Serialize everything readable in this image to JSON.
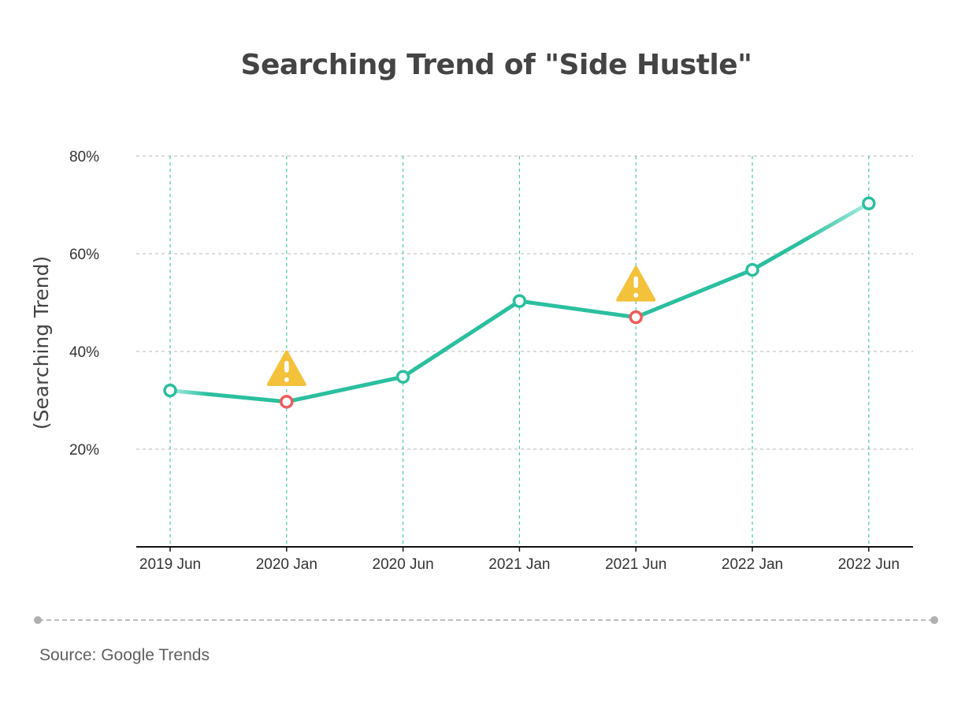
{
  "chart_data": {
    "type": "line",
    "title": "Searching Trend of \"Side Hustle\"",
    "xlabel": "",
    "ylabel": "(Searching Trend)",
    "categories": [
      "2019 Jun",
      "2020 Jan",
      "2020 Jun",
      "2021 Jan",
      "2021 Jun",
      "2022 Jan",
      "2022 Jun"
    ],
    "series": [
      {
        "values": [
          32,
          29.7,
          34.8,
          50.3,
          47,
          56.7,
          70.3
        ],
        "marker_colors": [
          "#2bbf9f",
          "#ee5c5c",
          "#2bbf9f",
          "#2bbf9f",
          "#ee5c5c",
          "#2bbf9f",
          "#2bbf9f"
        ]
      }
    ],
    "yticks": [
      20,
      40,
      60,
      80
    ],
    "ytick_labels": [
      "20%",
      "40%",
      "60%",
      "80%"
    ],
    "ylim": [
      0,
      80
    ],
    "grid": true,
    "warning_points": [
      "2020 Jan",
      "2021 Jun"
    ],
    "annotations": [
      {
        "category": "2020 Jan",
        "icon": "warning-icon"
      },
      {
        "category": "2021 Jun",
        "icon": "warning-icon"
      }
    ],
    "colors": {
      "line": "#2bbf9f",
      "line_faded": "#a8ede0",
      "grid_vertical": "#2bbf9f",
      "grid_horizontal": "#c8c8c8",
      "decline_marker": "#ee5c5c",
      "warning": "#f3c13a"
    }
  },
  "footer": {
    "source": "Source: Google Trends"
  }
}
